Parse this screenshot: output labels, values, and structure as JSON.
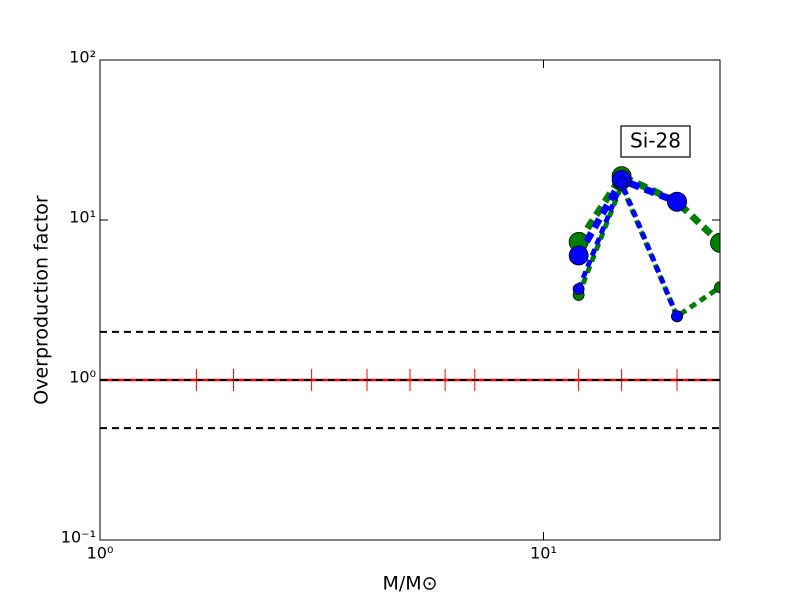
{
  "chart_data": {
    "type": "line",
    "xlabel": "M/M⊙",
    "ylabel": "Overproduction factor",
    "annotation": "Si-28",
    "log_x": true,
    "log_y": true,
    "xlim": [
      1,
      25
    ],
    "ylim": [
      0.1,
      100
    ],
    "xticks": [
      {
        "value": 1,
        "label": "10⁰"
      },
      {
        "value": 10,
        "label": "10¹"
      }
    ],
    "yticks": [
      {
        "value": 0.1,
        "label": "10⁻¹"
      },
      {
        "value": 1,
        "label": "10⁰"
      },
      {
        "value": 10,
        "label": "10¹"
      },
      {
        "value": 100,
        "label": "10²"
      }
    ],
    "hlines": [
      {
        "y": 1,
        "color": "#ff0000",
        "style": "solid"
      },
      {
        "y": 2,
        "color": "#000000",
        "style": "dashed"
      },
      {
        "y": 1,
        "color": "#000000",
        "style": "dashed"
      },
      {
        "y": 0.5,
        "color": "#000000",
        "style": "dashed"
      }
    ],
    "markers": {
      "x": [
        1.65,
        2,
        3,
        4,
        5,
        6,
        7,
        12,
        15,
        20
      ],
      "y": 1,
      "color": "#ff0000"
    },
    "x": [
      12,
      15,
      20,
      25
    ],
    "series": [
      {
        "color": "#008000",
        "style": "thick",
        "values": [
          7.3,
          18.8,
          13,
          7.2
        ]
      },
      {
        "color": "#0000ff",
        "style": "thick",
        "values": [
          6,
          17.8,
          13,
          null
        ]
      },
      {
        "color": "#008000",
        "style": "thin",
        "values": [
          3.4,
          16.5,
          2.5,
          3.8
        ]
      },
      {
        "color": "#0000ff",
        "style": "thin",
        "values": [
          3.7,
          17,
          2.5,
          null
        ]
      }
    ]
  }
}
